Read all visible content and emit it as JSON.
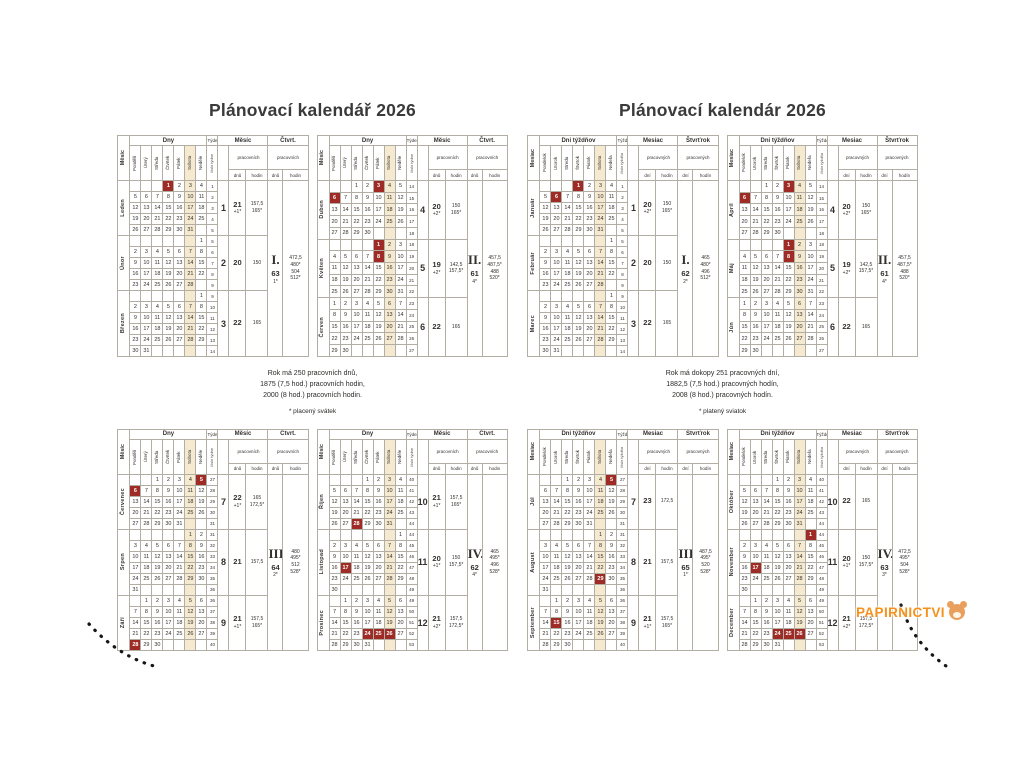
{
  "colors": {
    "holiday_red": "#9e2b25",
    "saturday_tan": "#f5e9cf",
    "watermark_orange": "#f5921e",
    "title_gray": "#3a3a3a"
  },
  "watermark": {
    "text": "PAPIRNICTVI"
  },
  "pages": [
    {
      "title": "Plánovací kalendář 2026",
      "headers": {
        "month": "Měsíc",
        "days": "Dny",
        "week": "Týden",
        "week_sub": "číslo týdne",
        "month_group": "Měsíc",
        "quarter_group": "Čtvrt.",
        "working": "pracovních",
        "days_sub": "dnů",
        "hours_sub": "hodin",
        "day_names": [
          "Pondělí",
          "Úterý",
          "Středa",
          "Čtvrtek",
          "Pátek",
          "Sobota",
          "Neděle"
        ]
      },
      "summary": [
        "Rok má 250 pracovních dnů,",
        "1875 (7,5 hod.) pracovních hodin,",
        "2000 (8 hod.) pracovních hodin."
      ],
      "footnote": "* placený svátek",
      "quarters": [
        {
          "roman": "I.",
          "days": "63",
          "star": "1*",
          "hours": [
            "472,5",
            "480*"
          ],
          "hours8": [
            "504",
            "512*"
          ],
          "months": [
            {
              "name": "Leden",
              "num": "1",
              "fd": 3,
              "nd": 31,
              "fw": 1,
              "hol": [
                1
              ],
              "wd": "21",
              "wds": "+1*",
              "hr": "157,5",
              "hrs": "165*"
            },
            {
              "name": "Únor",
              "num": "2",
              "fd": 6,
              "nd": 28,
              "fw": 5,
              "hol": [],
              "wd": "20",
              "wds": "",
              "hr": "150",
              "hrs": ""
            },
            {
              "name": "Březen",
              "num": "3",
              "fd": 6,
              "nd": 31,
              "fw": 9,
              "hol": [],
              "wd": "22",
              "wds": "",
              "hr": "165",
              "hrs": ""
            }
          ]
        },
        {
          "roman": "II.",
          "days": "61",
          "star": "4*",
          "hours": [
            "457,5",
            "487,5*"
          ],
          "hours8": [
            "488",
            "520*"
          ],
          "months": [
            {
              "name": "Duben",
              "num": "4",
              "fd": 2,
              "nd": 30,
              "fw": 14,
              "hol": [
                3,
                6
              ],
              "wd": "20",
              "wds": "+2*",
              "hr": "150",
              "hrs": "165*"
            },
            {
              "name": "Květen",
              "num": "5",
              "fd": 4,
              "nd": 31,
              "fw": 18,
              "hol": [
                1,
                8
              ],
              "wd": "19",
              "wds": "+2*",
              "hr": "142,5",
              "hrs": "157,5*"
            },
            {
              "name": "Červen",
              "num": "6",
              "fd": 0,
              "nd": 30,
              "fw": 23,
              "hol": [],
              "wd": "22",
              "wds": "",
              "hr": "165",
              "hrs": ""
            }
          ]
        },
        {
          "roman": "III.",
          "days": "64",
          "star": "2*",
          "hours": [
            "480",
            "495*"
          ],
          "hours8": [
            "512",
            "528*"
          ],
          "months": [
            {
              "name": "Červenec",
              "num": "7",
              "fd": 2,
              "nd": 31,
              "fw": 27,
              "hol": [
                5,
                6
              ],
              "wd": "22",
              "wds": "+1*",
              "hr": "165",
              "hrs": "172,5*"
            },
            {
              "name": "Srpen",
              "num": "8",
              "fd": 5,
              "nd": 31,
              "fw": 31,
              "hol": [],
              "wd": "21",
              "wds": "",
              "hr": "157,5",
              "hrs": ""
            },
            {
              "name": "Září",
              "num": "9",
              "fd": 1,
              "nd": 30,
              "fw": 36,
              "hol": [
                28
              ],
              "wd": "21",
              "wds": "+1*",
              "hr": "157,5",
              "hrs": "165*"
            }
          ]
        },
        {
          "roman": "IV.",
          "days": "62",
          "star": "4*",
          "hours": [
            "465",
            "495*"
          ],
          "hours8": [
            "496",
            "528*"
          ],
          "months": [
            {
              "name": "Říjen",
              "num": "10",
              "fd": 3,
              "nd": 31,
              "fw": 40,
              "hol": [
                28
              ],
              "wd": "21",
              "wds": "+1*",
              "hr": "157,5",
              "hrs": "165*"
            },
            {
              "name": "Listopad",
              "num": "11",
              "fd": 6,
              "nd": 30,
              "fw": 44,
              "hol": [
                17
              ],
              "wd": "20",
              "wds": "+1*",
              "hr": "150",
              "hrs": "157,5*"
            },
            {
              "name": "Prosinec",
              "num": "12",
              "fd": 1,
              "nd": 31,
              "fw": 49,
              "hol": [
                24,
                25,
                26
              ],
              "wd": "21",
              "wds": "+2*",
              "hr": "157,5",
              "hrs": "172,5*"
            }
          ]
        }
      ]
    },
    {
      "title": "Plánovací kalendár 2026",
      "headers": {
        "month": "Mesiac",
        "days": "Dni týždňov",
        "week": "Týždeň",
        "week_sub": "číslo týždňa",
        "month_group": "Mesiac",
        "quarter_group": "Štvrťrok",
        "working": "pracovných",
        "days_sub": "dní",
        "hours_sub": "hodín",
        "day_names": [
          "Pondelok",
          "Utorok",
          "Streda",
          "Štvrtok",
          "Piatok",
          "Sobota",
          "Nedeľa"
        ]
      },
      "summary": [
        "Rok má dokopy 251 pracovných dní,",
        "1882,5 (7,5 hod.) pracovných hodín,",
        "2008 (8 hod.) pracovných hodín."
      ],
      "footnote": "* platený sviatok",
      "quarters": [
        {
          "roman": "I.",
          "days": "62",
          "star": "2*",
          "hours": [
            "465",
            "480*"
          ],
          "hours8": [
            "496",
            "512*"
          ],
          "months": [
            {
              "name": "Január",
              "num": "1",
              "fd": 3,
              "nd": 31,
              "fw": 1,
              "hol": [
                1,
                6
              ],
              "wd": "20",
              "wds": "+2*",
              "hr": "150",
              "hrs": "165*"
            },
            {
              "name": "Február",
              "num": "2",
              "fd": 6,
              "nd": 28,
              "fw": 5,
              "hol": [],
              "wd": "20",
              "wds": "",
              "hr": "150",
              "hrs": ""
            },
            {
              "name": "Marec",
              "num": "3",
              "fd": 6,
              "nd": 31,
              "fw": 9,
              "hol": [],
              "wd": "22",
              "wds": "",
              "hr": "165",
              "hrs": ""
            }
          ]
        },
        {
          "roman": "II.",
          "days": "61",
          "star": "4*",
          "hours": [
            "457,5",
            "487,5*"
          ],
          "hours8": [
            "488",
            "520*"
          ],
          "months": [
            {
              "name": "Apríl",
              "num": "4",
              "fd": 2,
              "nd": 30,
              "fw": 14,
              "hol": [
                3,
                6
              ],
              "wd": "20",
              "wds": "+2*",
              "hr": "150",
              "hrs": "165*"
            },
            {
              "name": "Máj",
              "num": "5",
              "fd": 4,
              "nd": 31,
              "fw": 18,
              "hol": [
                1,
                8
              ],
              "wd": "19",
              "wds": "+2*",
              "hr": "142,5",
              "hrs": "157,5*"
            },
            {
              "name": "Jún",
              "num": "6",
              "fd": 0,
              "nd": 30,
              "fw": 23,
              "hol": [],
              "wd": "22",
              "wds": "",
              "hr": "165",
              "hrs": ""
            }
          ]
        },
        {
          "roman": "III.",
          "days": "65",
          "star": "1*",
          "hours": [
            "487,5",
            "495*"
          ],
          "hours8": [
            "520",
            "528*"
          ],
          "months": [
            {
              "name": "Júl",
              "num": "7",
              "fd": 2,
              "nd": 31,
              "fw": 27,
              "hol": [
                5
              ],
              "wd": "23",
              "wds": "",
              "hr": "172,5",
              "hrs": ""
            },
            {
              "name": "August",
              "num": "8",
              "fd": 5,
              "nd": 31,
              "fw": 31,
              "hol": [
                29
              ],
              "wd": "21",
              "wds": "",
              "hr": "157,5",
              "hrs": ""
            },
            {
              "name": "September",
              "num": "9",
              "fd": 1,
              "nd": 30,
              "fw": 36,
              "hol": [
                15
              ],
              "wd": "21",
              "wds": "+1*",
              "hr": "157,5",
              "hrs": "165*"
            }
          ]
        },
        {
          "roman": "IV.",
          "days": "63",
          "star": "3*",
          "hours": [
            "472,5",
            "495*"
          ],
          "hours8": [
            "504",
            "528*"
          ],
          "months": [
            {
              "name": "Október",
              "num": "10",
              "fd": 3,
              "nd": 31,
              "fw": 40,
              "hol": [],
              "wd": "22",
              "wds": "",
              "hr": "165",
              "hrs": ""
            },
            {
              "name": "November",
              "num": "11",
              "fd": 6,
              "nd": 30,
              "fw": 44,
              "hol": [
                1,
                17
              ],
              "wd": "20",
              "wds": "+1*",
              "hr": "150",
              "hrs": "157,5*"
            },
            {
              "name": "December",
              "num": "12",
              "fd": 1,
              "nd": 31,
              "fw": 49,
              "hol": [
                24,
                25,
                26
              ],
              "wd": "21",
              "wds": "+2*",
              "hr": "157,5",
              "hrs": "172,5*"
            }
          ]
        }
      ]
    }
  ]
}
